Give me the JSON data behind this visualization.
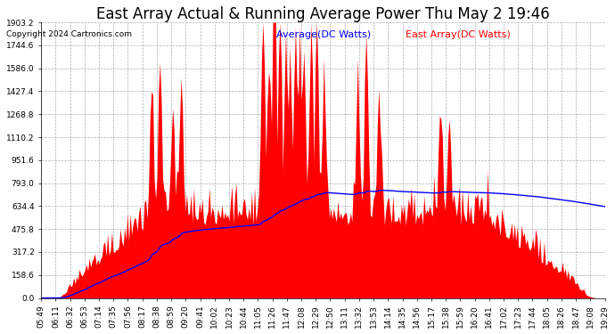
{
  "title": "East Array Actual & Running Average Power Thu May 2 19:46",
  "copyright": "Copyright 2024 Cartronics.com",
  "legend_avg": "Average(DC Watts)",
  "legend_east": "East Array(DC Watts)",
  "legend_avg_color": "blue",
  "legend_east_color": "red",
  "yticks": [
    0.0,
    158.6,
    317.2,
    475.8,
    634.4,
    793.0,
    951.6,
    1110.2,
    1268.8,
    1427.4,
    1586.0,
    1744.6,
    1903.2
  ],
  "ymax": 1903.2,
  "ymin": 0.0,
  "fill_color": "red",
  "line_color": "blue",
  "background_color": "#ffffff",
  "grid_color": "#999999",
  "title_fontsize": 12,
  "copyright_fontsize": 6.5,
  "tick_fontsize": 6.5,
  "legend_fontsize": 8,
  "xtick_labels": [
    "05:49",
    "06:11",
    "06:32",
    "06:53",
    "07:14",
    "07:35",
    "07:56",
    "08:17",
    "08:38",
    "08:59",
    "09:20",
    "09:41",
    "10:02",
    "10:23",
    "10:44",
    "11:05",
    "11:26",
    "11:47",
    "12:08",
    "12:29",
    "12:50",
    "13:11",
    "13:32",
    "13:53",
    "14:14",
    "14:35",
    "14:56",
    "15:17",
    "15:38",
    "15:59",
    "16:20",
    "16:41",
    "17:02",
    "17:23",
    "17:44",
    "18:05",
    "18:26",
    "18:47",
    "19:08",
    "19:29"
  ]
}
